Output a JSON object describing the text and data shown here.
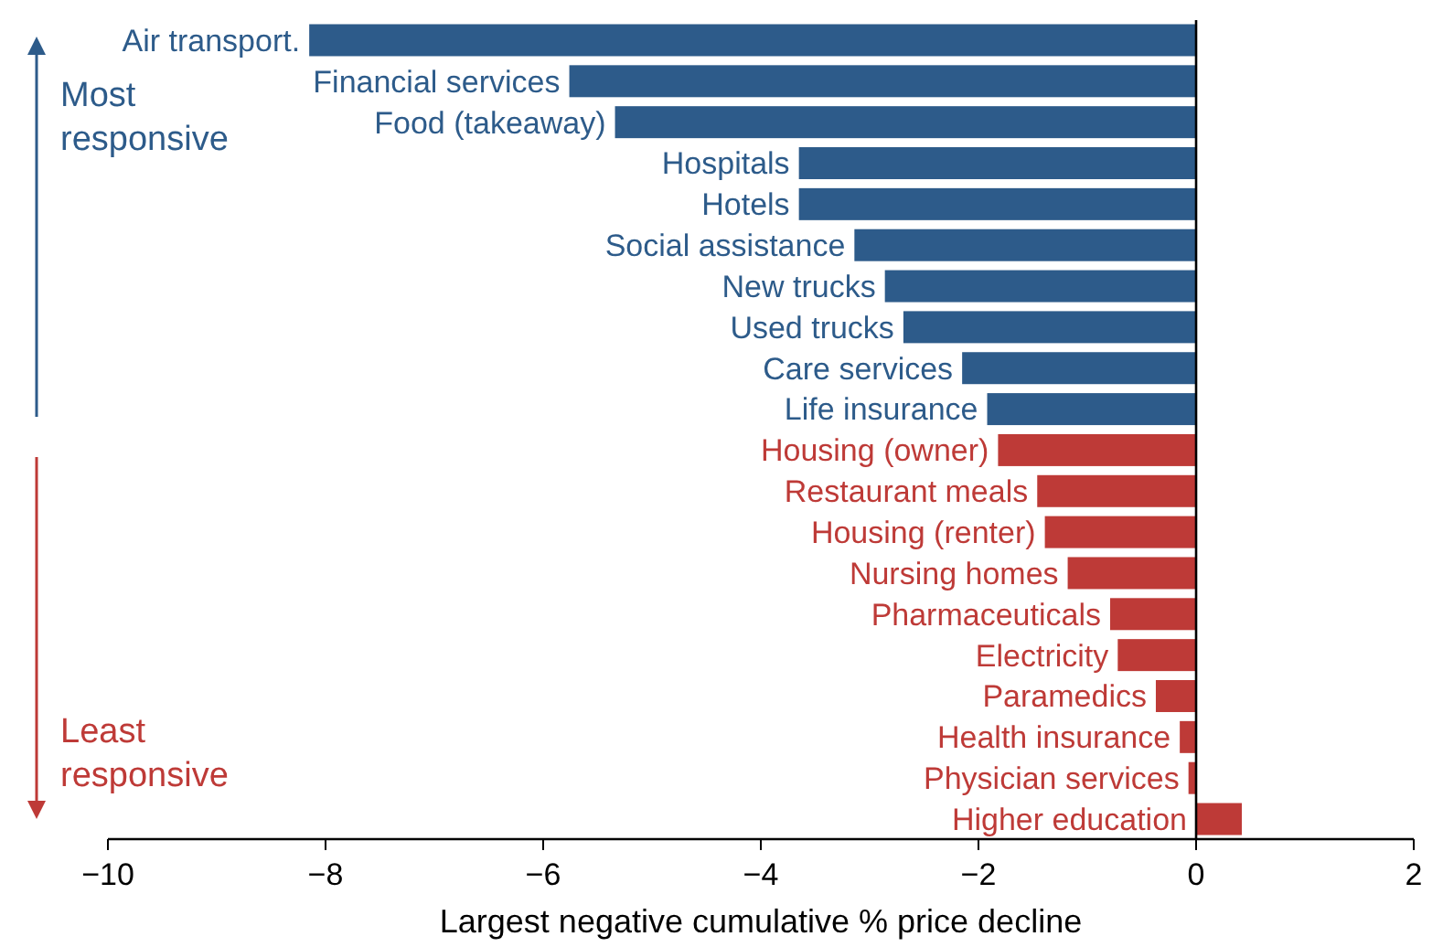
{
  "chart_data": {
    "type": "bar",
    "orientation": "horizontal",
    "xlabel": "Largest negative cumulative % price decline",
    "categories": [
      "Air transport.",
      "Financial services",
      "Food (takeaway)",
      "Hospitals",
      "Hotels",
      "Social assistance",
      "New trucks",
      "Used trucks",
      "Care services",
      "Life insurance",
      "Housing (owner)",
      "Restaurant meals",
      "Housing (renter)",
      "Nursing homes",
      "Pharmaceuticals",
      "Electricity",
      "Paramedics",
      "Health insurance",
      "Physician services",
      "Higher education"
    ],
    "values": [
      -8.15,
      -5.76,
      -5.34,
      -3.65,
      -3.65,
      -3.14,
      -2.86,
      -2.69,
      -2.15,
      -1.92,
      -1.82,
      -1.46,
      -1.39,
      -1.18,
      -0.79,
      -0.72,
      -0.37,
      -0.15,
      -0.07,
      0.42
    ],
    "colors": [
      "#2d5b8a",
      "#2d5b8a",
      "#2d5b8a",
      "#2d5b8a",
      "#2d5b8a",
      "#2d5b8a",
      "#2d5b8a",
      "#2d5b8a",
      "#2d5b8a",
      "#2d5b8a",
      "#be3a37",
      "#be3a37",
      "#be3a37",
      "#be3a37",
      "#be3a37",
      "#be3a37",
      "#be3a37",
      "#be3a37",
      "#be3a37",
      "#be3a37"
    ],
    "xlim": [
      -10,
      2
    ],
    "xticks": [
      -10,
      -8,
      -6,
      -4,
      -2,
      0,
      2
    ],
    "grid": false,
    "annotations": [
      "Most responsive",
      "Least responsive"
    ]
  }
}
